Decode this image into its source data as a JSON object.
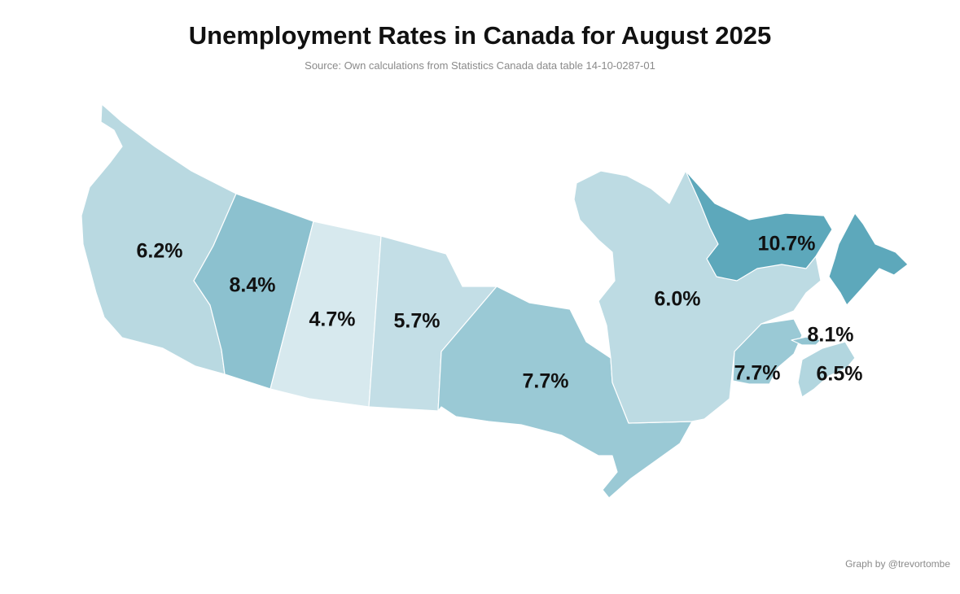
{
  "title": "Unemployment Rates in Canada for August 2025",
  "subtitle": "Source: Own calculations from Statistics Canada data table 14-10-0287-01",
  "credit": "Graph by @trevortombe",
  "map": {
    "type": "choropleth",
    "region": "Canada provinces",
    "measure": "Unemployment rate (%)",
    "color_low": "#d7e9ee",
    "color_high": "#5da8bb",
    "provinces": [
      {
        "code": "BC",
        "name": "British Columbia",
        "value": 6.2,
        "label": "6.2%"
      },
      {
        "code": "AB",
        "name": "Alberta",
        "value": 8.4,
        "label": "8.4%"
      },
      {
        "code": "SK",
        "name": "Saskatchewan",
        "value": 4.7,
        "label": "4.7%"
      },
      {
        "code": "MB",
        "name": "Manitoba",
        "value": 5.7,
        "label": "5.7%"
      },
      {
        "code": "ON",
        "name": "Ontario",
        "value": 7.7,
        "label": "7.7%"
      },
      {
        "code": "QC",
        "name": "Quebec",
        "value": 6.0,
        "label": "6.0%"
      },
      {
        "code": "NL",
        "name": "Newfoundland and Labrador",
        "value": 10.7,
        "label": "10.7%"
      },
      {
        "code": "NB",
        "name": "New Brunswick",
        "value": 7.7,
        "label": "7.7%"
      },
      {
        "code": "PE",
        "name": "Prince Edward Island",
        "value": 8.1,
        "label": "8.1%"
      },
      {
        "code": "NS",
        "name": "Nova Scotia",
        "value": 6.5,
        "label": "6.5%"
      }
    ]
  }
}
